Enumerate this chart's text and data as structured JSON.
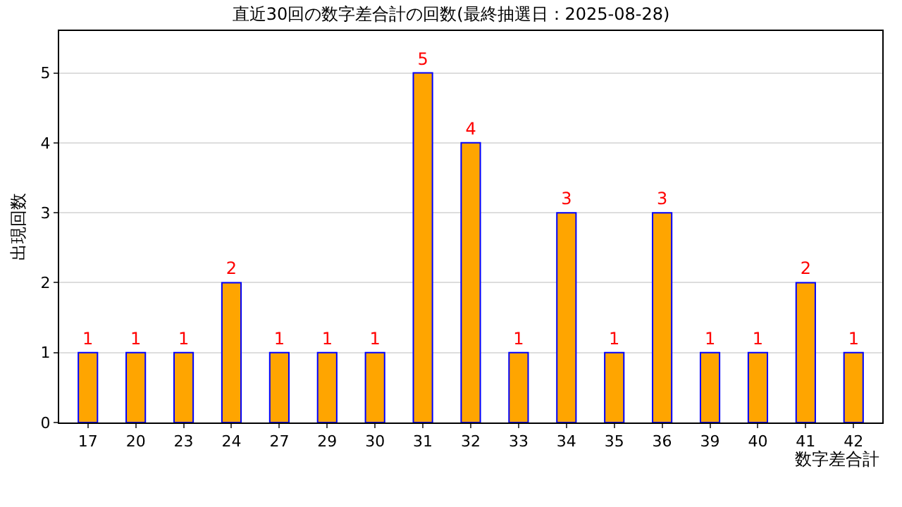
{
  "chart_data": {
    "type": "bar",
    "title": "直近30回の数字差合計の回数(最終抽選日：2025-08-28)",
    "xlabel": "数字差合計",
    "ylabel": "出現回数",
    "categories": [
      "17",
      "20",
      "23",
      "24",
      "27",
      "29",
      "30",
      "31",
      "32",
      "33",
      "34",
      "35",
      "36",
      "39",
      "40",
      "41",
      "42"
    ],
    "values": [
      1,
      1,
      1,
      2,
      1,
      1,
      1,
      5,
      4,
      1,
      3,
      1,
      3,
      1,
      1,
      2,
      1
    ],
    "color": "#ffa500",
    "ylim": [
      0,
      5.6
    ],
    "yticks": [
      0,
      1,
      2,
      3,
      4,
      5
    ],
    "grid": "y",
    "data_labels": true
  }
}
